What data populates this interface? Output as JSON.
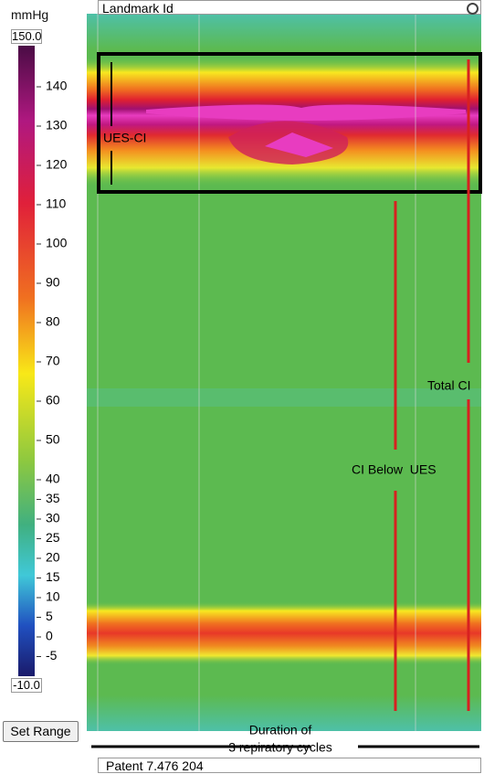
{
  "header": {
    "title": "Landmark Id"
  },
  "scale": {
    "unit": "mmHg",
    "max": "150.0",
    "min": "-10.0",
    "ticks": [
      140,
      130,
      120,
      110,
      100,
      90,
      80,
      70,
      60,
      50,
      40,
      35,
      30,
      25,
      20,
      15,
      10,
      5,
      0,
      -5
    ]
  },
  "button": {
    "label": "Set Range"
  },
  "annotations": {
    "ues_ci": "UES-CI",
    "total_ci": "Total CI",
    "ci_below_ues": "CI Below  UES",
    "duration": [
      "Duration of",
      "3 repiratory cycles"
    ]
  },
  "footer": {
    "text": "Patent 7.476 204"
  }
}
